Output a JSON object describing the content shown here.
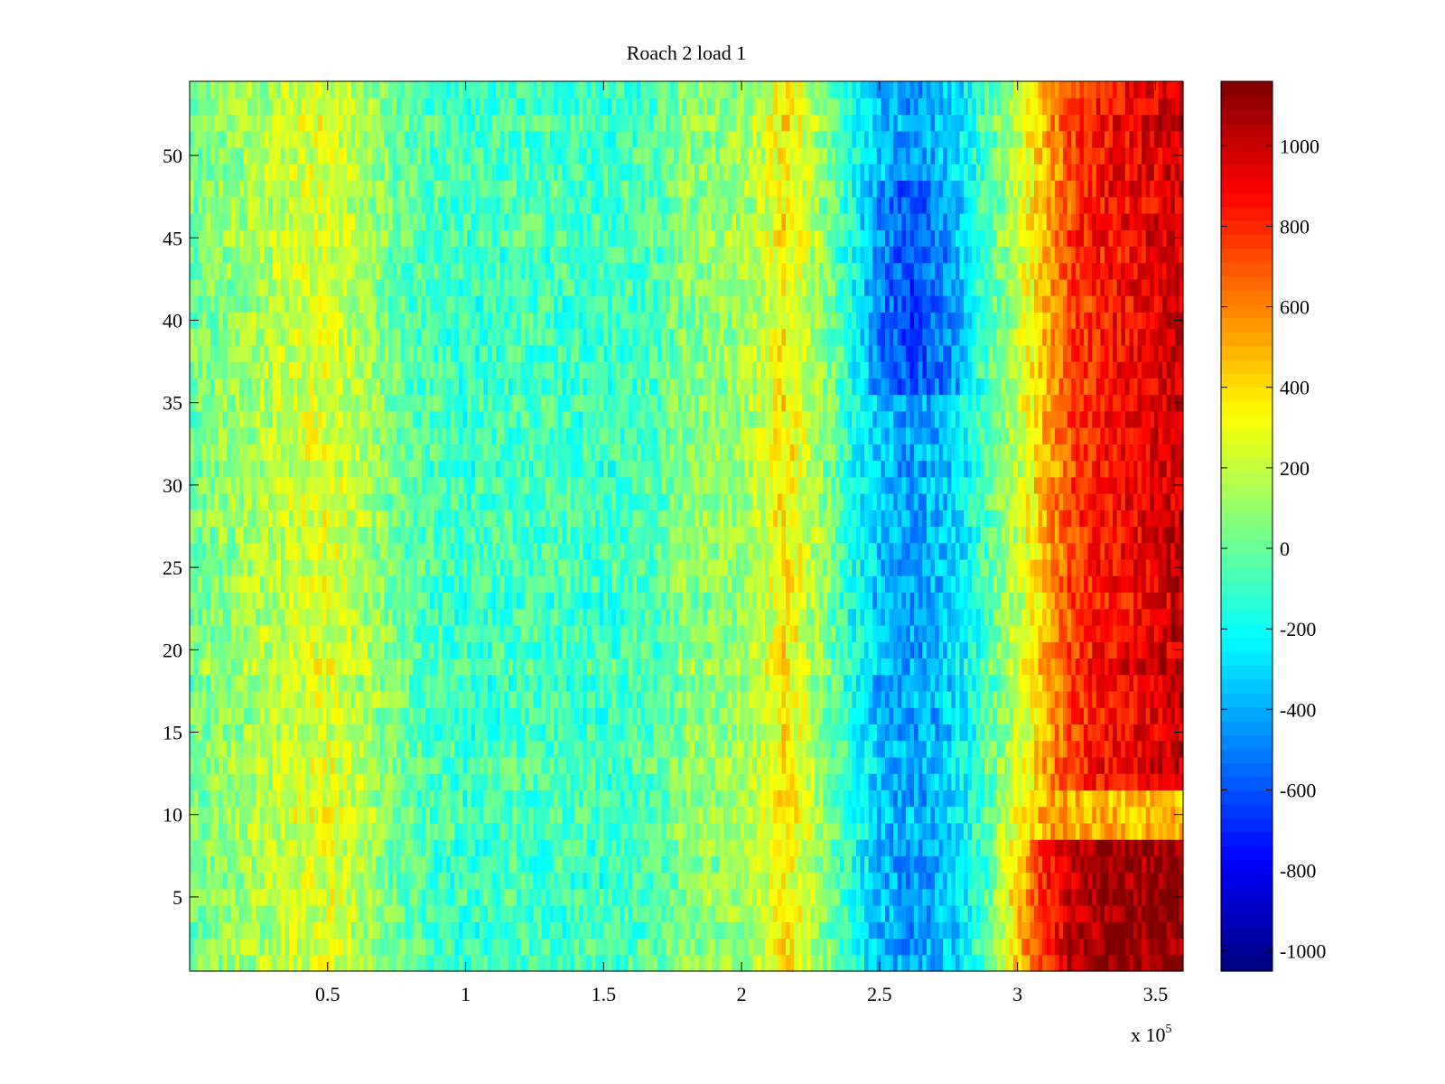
{
  "chart_data": {
    "type": "heatmap",
    "title": "Roach 2 load 1",
    "xlabel": "",
    "ylabel": "",
    "x_multiplier_label": "x 10",
    "x_multiplier_exponent": "5",
    "colormap": "jet",
    "xlim": [
      0,
      360000
    ],
    "ylim": [
      0.5,
      54.5
    ],
    "x_ticks": [
      50000,
      100000,
      150000,
      200000,
      250000,
      300000,
      350000
    ],
    "x_tick_labels": [
      "0.5",
      "1",
      "1.5",
      "2",
      "2.5",
      "3",
      "3.5"
    ],
    "y_ticks": [
      5,
      10,
      15,
      20,
      25,
      30,
      35,
      40,
      45,
      50
    ],
    "y_tick_labels": [
      "5",
      "10",
      "15",
      "20",
      "25",
      "30",
      "35",
      "40",
      "45",
      "50"
    ],
    "colorbar": {
      "range": [
        -1050,
        1160
      ],
      "ticks": [
        -1000,
        -800,
        -600,
        -400,
        -200,
        0,
        200,
        400,
        600,
        800,
        1000
      ],
      "tick_labels": [
        "-1000",
        "-800",
        "-600",
        "-400",
        "-200",
        "0",
        "200",
        "400",
        "600",
        "800",
        "1000"
      ]
    },
    "rows": 54,
    "x_profile": {
      "x": [
        0,
        20000,
        40000,
        50000,
        60000,
        80000,
        100000,
        120000,
        150000,
        170000,
        180000,
        200000,
        210000,
        215000,
        220000,
        230000,
        240000,
        250000,
        260000,
        270000,
        280000,
        290000,
        300000,
        310000,
        320000,
        330000,
        340000,
        350000,
        360000
      ],
      "value": [
        20,
        120,
        230,
        260,
        180,
        -30,
        -100,
        -60,
        -90,
        -40,
        80,
        110,
        250,
        380,
        300,
        80,
        -150,
        -350,
        -420,
        -380,
        -250,
        -20,
        200,
        500,
        750,
        850,
        900,
        950,
        1000
      ]
    },
    "row_modifiers": [
      {
        "rows": [
          1,
          8
        ],
        "note": "stronger high values near right edge",
        "right_peak": 1120
      },
      {
        "rows": [
          9,
          11
        ],
        "note": "moderate values near right edge",
        "right_peak": 450
      },
      {
        "rows": [
          36,
          48
        ],
        "note": "deep low band around x=260000",
        "low_min": -700
      }
    ]
  }
}
